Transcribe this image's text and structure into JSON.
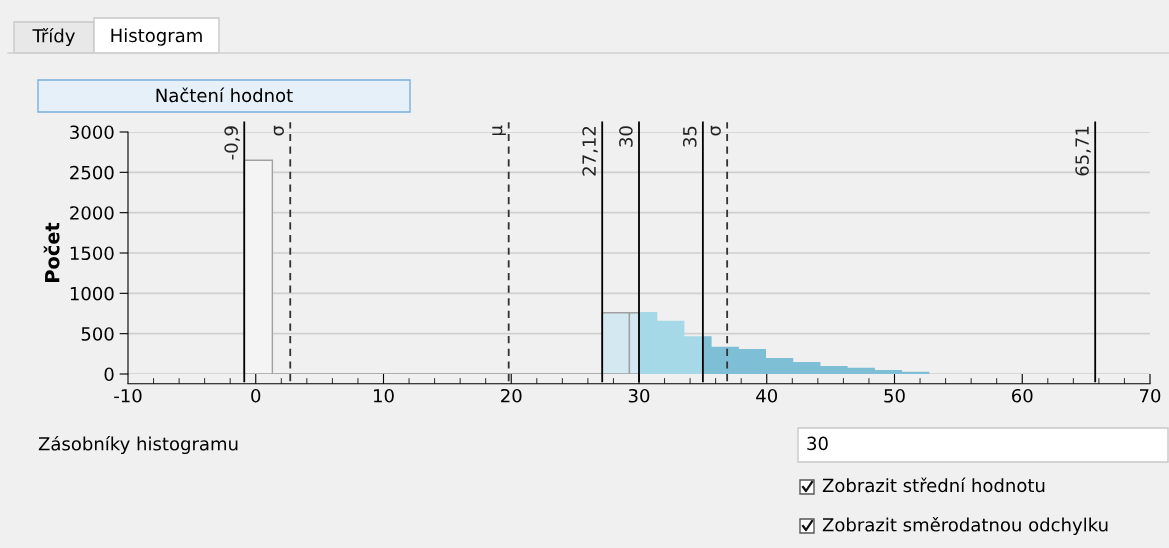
{
  "chart_data": {
    "type": "histogram",
    "ylabel": "Počet",
    "bins": [
      -0.9,
      1.3,
      27.12,
      29.25,
      30,
      31.38,
      33.5,
      35,
      35.63,
      37.76,
      39.89,
      42.02,
      44.15,
      46.28,
      48.41,
      50.54,
      52.67
    ],
    "values": [
      2650,
      0,
      760,
      760,
      760,
      650,
      460,
      460,
      330,
      300,
      190,
      140,
      90,
      70,
      40,
      20
    ],
    "colors": [
      "#f4f4f4",
      "#a0a0a0",
      "#d3e8f0",
      "#d3e8f0",
      "#a6d9e8",
      "#a6d9e8",
      "#a6d9e8",
      "#7fbfd6",
      "#7fbfd6",
      "#7fbfd6",
      "#7fbfd6",
      "#7fbfd6",
      "#7fbfd6",
      "#7fbfd6",
      "#7fbfd6",
      "#7fbfd6"
    ],
    "xlim": [
      -10,
      70
    ],
    "xticks": [
      -10,
      0,
      10,
      20,
      30,
      40,
      50,
      60,
      70
    ],
    "ylim": [
      0,
      3000
    ],
    "yticks": [
      0,
      500,
      1000,
      1500,
      2000,
      2500,
      3000
    ],
    "grid": "y",
    "ref_lines": [
      {
        "axis": "x",
        "value": -0.9,
        "label": "-0,9",
        "color": "#000000",
        "line_style": "solid"
      },
      {
        "axis": "x",
        "value": 2.7,
        "label": "σ",
        "color": "#333333",
        "line_style": "dashed"
      },
      {
        "axis": "x",
        "value": 19.8,
        "label": "μ",
        "color": "#333333",
        "line_style": "dashed"
      },
      {
        "axis": "x",
        "value": 27.12,
        "label": "27,12",
        "color": "#000000",
        "line_style": "solid"
      },
      {
        "axis": "x",
        "value": 30,
        "label": "30",
        "color": "#000000",
        "line_style": "solid"
      },
      {
        "axis": "x",
        "value": 35,
        "label": "35",
        "color": "#000000",
        "line_style": "solid"
      },
      {
        "axis": "x",
        "value": 36.9,
        "label": "σ",
        "color": "#333333",
        "line_style": "dashed"
      },
      {
        "axis": "x",
        "value": 65.71,
        "label": "65,71",
        "color": "#000000",
        "line_style": "solid"
      }
    ],
    "annotations": [
      "Třídy",
      "Histogram",
      "Načtení hodnot",
      "Zásobníky histogramu",
      "30",
      "Zobrazit střední hodnotu",
      "Zobrazit směrodatnou odchylku"
    ]
  }
}
